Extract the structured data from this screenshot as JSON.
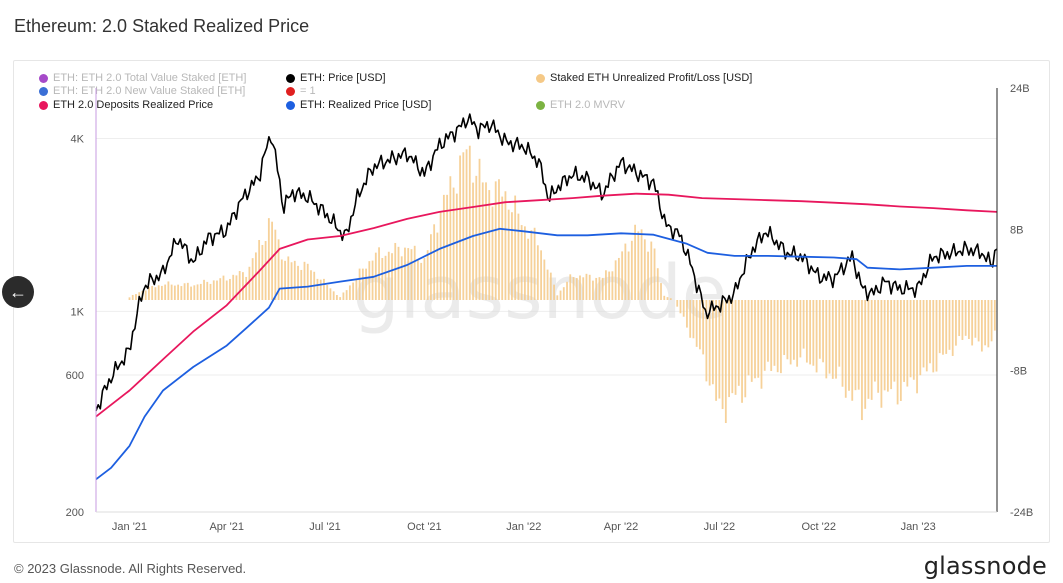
{
  "page": {
    "title": "Ethereum: 2.0 Staked Realized Price",
    "footer": "© 2023 Glassnode. All Rights Reserved.",
    "brand": "glassnode",
    "watermark": "glassnode",
    "back_icon": "arrow-left-icon"
  },
  "legend": [
    {
      "label": "ETH: ETH 2.0 Total Value Staked [ETH]",
      "color": "#a64ac9",
      "active": false
    },
    {
      "label": "ETH: Price [USD]",
      "color": "#000000",
      "active": true
    },
    {
      "label": "Staked ETH Unrealized Profit/Loss [USD]",
      "color": "#f5c987",
      "active": true
    },
    {
      "label": "ETH: ETH 2.0 New Value Staked [ETH]",
      "color": "#3b6fd6",
      "active": false
    },
    {
      "label": "= 1",
      "color": "#e02020",
      "active": false
    },
    {
      "label": "ETH 2.0 Deposits Realized Price",
      "color": "#e8175d",
      "active": true
    },
    {
      "label": "ETH: Realized Price [USD]",
      "color": "#1d5fe0",
      "active": true
    },
    {
      "label": "ETH 2.0 MVRV",
      "color": "#7cb342",
      "active": false
    }
  ],
  "chart_data": {
    "type": "line",
    "x_ticks": [
      "Jan '21",
      "Apr '21",
      "Jul '21",
      "Oct '21",
      "Jan '22",
      "Apr '22",
      "Jul '22",
      "Oct '22",
      "Jan '23"
    ],
    "y_left": {
      "scale": "log",
      "ticks": [
        "200",
        "600",
        "1K",
        "4K"
      ],
      "tick_values": [
        200,
        600,
        1000,
        4000
      ],
      "range": [
        200,
        6000
      ]
    },
    "y_right": {
      "scale": "linear",
      "ticks": [
        "24B",
        "8B",
        "-8B",
        "-24B"
      ],
      "tick_values": [
        24,
        8,
        -8,
        -24
      ],
      "range": [
        -24,
        24
      ],
      "unit": "B"
    },
    "x_range": [
      "2020-12-01",
      "2023-03-15"
    ],
    "series": [
      {
        "name": "ETH: Price [USD]",
        "color": "#000000",
        "axis": "left",
        "x": [
          "2020-12-01",
          "2020-12-15",
          "2021-01-01",
          "2021-01-15",
          "2021-02-01",
          "2021-02-15",
          "2021-03-01",
          "2021-03-15",
          "2021-04-01",
          "2021-04-15",
          "2021-05-01",
          "2021-05-12",
          "2021-05-23",
          "2021-06-01",
          "2021-06-15",
          "2021-07-01",
          "2021-07-20",
          "2021-08-01",
          "2021-08-15",
          "2021-09-01",
          "2021-09-15",
          "2021-10-01",
          "2021-10-15",
          "2021-11-01",
          "2021-11-10",
          "2021-11-20",
          "2021-12-01",
          "2021-12-15",
          "2022-01-01",
          "2022-01-15",
          "2022-01-24",
          "2022-02-01",
          "2022-02-15",
          "2022-03-01",
          "2022-03-15",
          "2022-04-01",
          "2022-04-15",
          "2022-05-01",
          "2022-05-12",
          "2022-05-25",
          "2022-06-10",
          "2022-06-18",
          "2022-07-01",
          "2022-07-15",
          "2022-08-01",
          "2022-08-13",
          "2022-09-01",
          "2022-09-15",
          "2022-10-01",
          "2022-10-15",
          "2022-11-01",
          "2022-11-10",
          "2022-11-20",
          "2022-12-01",
          "2022-12-15",
          "2023-01-01",
          "2023-01-15",
          "2023-02-01",
          "2023-02-15",
          "2023-03-01",
          "2023-03-10",
          "2023-03-15"
        ],
        "y": [
          450,
          590,
          730,
          1230,
          1360,
          1800,
          1480,
          1800,
          1920,
          2450,
          2950,
          4150,
          2300,
          2600,
          2500,
          2200,
          1800,
          2550,
          3200,
          3400,
          3550,
          3000,
          3800,
          4300,
          4700,
          4300,
          4500,
          3900,
          3750,
          3300,
          2450,
          2700,
          3000,
          2900,
          2550,
          3300,
          3050,
          2800,
          2000,
          1850,
          1250,
          990,
          1050,
          1150,
          1650,
          1900,
          1600,
          1550,
          1320,
          1300,
          1550,
          1200,
          1150,
          1270,
          1200,
          1200,
          1550,
          1600,
          1650,
          1600,
          1450,
          1700
        ]
      },
      {
        "name": "ETH 2.0 Deposits Realized Price",
        "color": "#e8175d",
        "axis": "left",
        "x": [
          "2020-12-01",
          "2021-01-01",
          "2021-02-01",
          "2021-03-01",
          "2021-04-01",
          "2021-05-01",
          "2021-05-20",
          "2021-06-15",
          "2021-07-15",
          "2021-08-15",
          "2021-09-15",
          "2021-10-15",
          "2021-11-15",
          "2021-12-15",
          "2022-01-15",
          "2022-02-15",
          "2022-03-15",
          "2022-04-15",
          "2022-05-15",
          "2022-06-15",
          "2022-07-15",
          "2022-08-15",
          "2022-09-15",
          "2022-10-15",
          "2022-11-15",
          "2022-12-15",
          "2023-01-15",
          "2023-02-15",
          "2023-03-15"
        ],
        "y": [
          430,
          530,
          680,
          850,
          1050,
          1380,
          1650,
          1780,
          1830,
          1950,
          2100,
          2220,
          2310,
          2400,
          2440,
          2480,
          2530,
          2570,
          2550,
          2480,
          2460,
          2440,
          2420,
          2390,
          2360,
          2320,
          2290,
          2250,
          2220
        ]
      },
      {
        "name": "ETH: Realized Price [USD]",
        "color": "#1d5fe0",
        "axis": "left",
        "x": [
          "2020-12-01",
          "2020-12-15",
          "2021-01-01",
          "2021-01-15",
          "2021-02-01",
          "2021-03-01",
          "2021-04-01",
          "2021-04-20",
          "2021-05-10",
          "2021-05-20",
          "2021-06-15",
          "2021-07-15",
          "2021-08-15",
          "2021-09-15",
          "2021-10-15",
          "2021-11-15",
          "2021-12-10",
          "2022-01-01",
          "2022-02-01",
          "2022-03-01",
          "2022-04-01",
          "2022-05-01",
          "2022-06-01",
          "2022-06-20",
          "2022-07-15",
          "2022-08-15",
          "2022-09-15",
          "2022-10-15",
          "2022-11-05",
          "2022-11-15",
          "2022-12-15",
          "2023-01-15",
          "2023-02-15",
          "2023-03-15"
        ],
        "y": [
          260,
          285,
          340,
          430,
          530,
          640,
          760,
          880,
          1030,
          1200,
          1220,
          1270,
          1320,
          1450,
          1650,
          1830,
          1940,
          1900,
          1840,
          1840,
          1870,
          1850,
          1720,
          1600,
          1560,
          1560,
          1550,
          1540,
          1520,
          1420,
          1400,
          1420,
          1440,
          1440
        ]
      },
      {
        "name": "Staked ETH Unrealized Profit/Loss [USD]",
        "color": "#f5c987",
        "axis": "right",
        "kind": "bars",
        "x": [
          "2021-01-01",
          "2021-01-15",
          "2021-02-01",
          "2021-03-01",
          "2021-04-01",
          "2021-04-20",
          "2021-05-12",
          "2021-05-25",
          "2021-06-15",
          "2021-07-15",
          "2021-08-15",
          "2021-09-15",
          "2021-10-01",
          "2021-10-15",
          "2021-11-10",
          "2021-11-25",
          "2021-12-15",
          "2022-01-01",
          "2022-01-15",
          "2022-02-01",
          "2022-02-15",
          "2022-03-15",
          "2022-04-01",
          "2022-04-15",
          "2022-05-01",
          "2022-05-10",
          "2022-05-20",
          "2022-06-15",
          "2022-07-01",
          "2022-07-15",
          "2022-08-15",
          "2022-09-15",
          "2022-10-15",
          "2022-11-10",
          "2022-11-25",
          "2022-12-15",
          "2023-01-15",
          "2023-02-15",
          "2023-03-01",
          "2023-03-15"
        ],
        "y": [
          0.3,
          1.2,
          1.8,
          1.7,
          2.5,
          3.2,
          9.0,
          4.5,
          3.8,
          0.3,
          5.0,
          6.0,
          4.5,
          10.0,
          17.0,
          13.0,
          12.0,
          8.5,
          6.5,
          0.6,
          2.8,
          2.5,
          5.0,
          8.0,
          6.0,
          0.6,
          0,
          -6.5,
          -12.5,
          -11.0,
          -8.0,
          -6.5,
          -8.5,
          -12.0,
          -10.5,
          -10.5,
          -7.5,
          -4.0,
          -5.5,
          -4.0
        ]
      }
    ]
  }
}
